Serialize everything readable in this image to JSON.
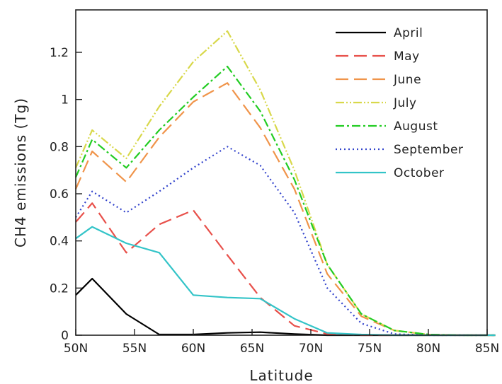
{
  "chart_data": {
    "type": "line",
    "title": "",
    "xlabel": "Latitude",
    "ylabel": "CH4 emissions (Tg)",
    "xlim": [
      50,
      85
    ],
    "ylim": [
      0,
      1.38
    ],
    "x_ticks": [
      50,
      55,
      60,
      65,
      70,
      75,
      80,
      85
    ],
    "x_tick_labels": [
      "50N",
      "55N",
      "60N",
      "65N",
      "70N",
      "75N",
      "80N",
      "85N"
    ],
    "y_ticks": [
      0,
      0.2,
      0.4,
      0.6,
      0.8,
      1,
      1.2
    ],
    "y_tick_labels": [
      "0",
      "0.2",
      "0.4",
      "0.6",
      "0.8",
      "1",
      "1.2"
    ],
    "grid": false,
    "legend_position": "top-right",
    "x": [
      50,
      51.4,
      54.3,
      57.1,
      60,
      62.9,
      65.7,
      68.6,
      71.4,
      74.3,
      77.1,
      80,
      82.9,
      85.7
    ],
    "series": [
      {
        "name": "April",
        "color": "#000000",
        "dash": "solid",
        "values": [
          0.17,
          0.24,
          0.09,
          0.003,
          0.003,
          0.01,
          0.013,
          0.005,
          0.0,
          0.0,
          0.0,
          0.0,
          0.0,
          0.0
        ]
      },
      {
        "name": "May",
        "color": "#e8504a",
        "dash": "dash",
        "values": [
          0.48,
          0.56,
          0.35,
          0.47,
          0.53,
          0.34,
          0.16,
          0.04,
          0.005,
          0.0,
          0.0,
          0.0,
          0.0,
          0.0
        ]
      },
      {
        "name": "June",
        "color": "#f0944a",
        "dash": "dash",
        "values": [
          0.62,
          0.78,
          0.65,
          0.84,
          0.99,
          1.07,
          0.88,
          0.62,
          0.26,
          0.08,
          0.02,
          0.003,
          0.0,
          0.0
        ]
      },
      {
        "name": "July",
        "color": "#d8d84a",
        "dash": "dashdotdot",
        "values": [
          0.71,
          0.87,
          0.75,
          0.97,
          1.16,
          1.29,
          1.04,
          0.7,
          0.3,
          0.09,
          0.02,
          0.003,
          0.0,
          0.0
        ]
      },
      {
        "name": "August",
        "color": "#22cc22",
        "dash": "dashdot",
        "values": [
          0.67,
          0.83,
          0.71,
          0.87,
          1.01,
          1.14,
          0.95,
          0.66,
          0.3,
          0.09,
          0.02,
          0.003,
          0.0,
          0.0
        ]
      },
      {
        "name": "September",
        "color": "#3344cc",
        "dash": "dot",
        "values": [
          0.5,
          0.61,
          0.52,
          0.61,
          0.71,
          0.8,
          0.72,
          0.52,
          0.2,
          0.05,
          0.005,
          0.0,
          0.0,
          0.0
        ]
      },
      {
        "name": "October",
        "color": "#33c4c8",
        "dash": "solid",
        "values": [
          0.41,
          0.46,
          0.39,
          0.35,
          0.17,
          0.16,
          0.155,
          0.07,
          0.01,
          0.003,
          0.0,
          0.0,
          0.0,
          0.0
        ]
      }
    ]
  }
}
